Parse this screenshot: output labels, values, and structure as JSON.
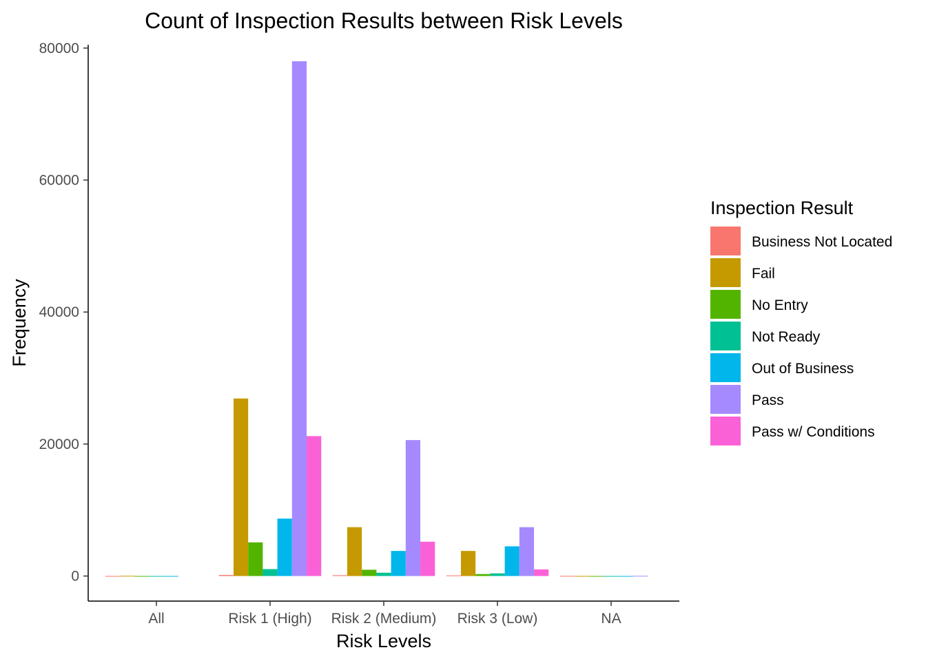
{
  "chart_data": {
    "type": "bar",
    "title": "Count of Inspection Results between Risk Levels",
    "xlabel": "Risk Levels",
    "ylabel": "Frequency",
    "ylim": [
      -3800,
      80500
    ],
    "yticks": [
      0,
      20000,
      40000,
      60000,
      80000
    ],
    "ytick_labels": [
      "0",
      "20000",
      "40000",
      "60000",
      "80000"
    ],
    "categories": [
      "All",
      "Risk 1 (High)",
      "Risk 2 (Medium)",
      "Risk 3 (Low)",
      "NA"
    ],
    "legend": {
      "title": "Inspection Result",
      "position": "right"
    },
    "grid": false,
    "series": [
      {
        "name": "Business Not Located",
        "color": "#F8766D",
        "values": [
          10,
          150,
          120,
          90,
          20
        ]
      },
      {
        "name": "Fail",
        "color": "#C49A00",
        "values": [
          30,
          26900,
          7400,
          3800,
          10
        ]
      },
      {
        "name": "No Entry",
        "color": "#53B400",
        "values": [
          5,
          5100,
          950,
          300,
          5
        ]
      },
      {
        "name": "Not Ready",
        "color": "#00C094",
        "values": [
          5,
          1050,
          500,
          400,
          5
        ]
      },
      {
        "name": "Out of Business",
        "color": "#00B6EB",
        "values": [
          5,
          8700,
          3800,
          4500,
          5
        ]
      },
      {
        "name": "Pass",
        "color": "#A58AFF",
        "values": [
          null,
          78000,
          20600,
          7400,
          30
        ]
      },
      {
        "name": "Pass w/ Conditions",
        "color": "#FB61D7",
        "values": [
          null,
          21200,
          5200,
          1000,
          null
        ]
      }
    ]
  }
}
